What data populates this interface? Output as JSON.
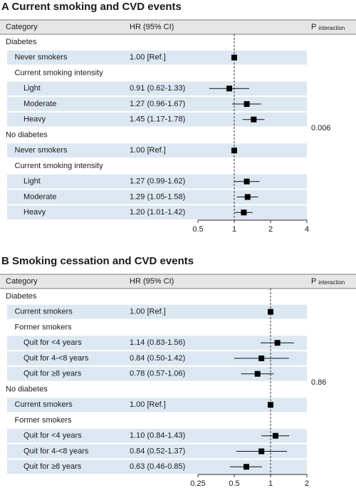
{
  "chart_data": [
    {
      "type": "forest",
      "title": "A Current smoking and CVD events",
      "columns": [
        "Category",
        "HR (95% CI)"
      ],
      "p_header": {
        "symbol": "P",
        "subscript": "interaction"
      },
      "p_value": 0.006,
      "log_x": true,
      "xlim": [
        0.5,
        4
      ],
      "xticks": [
        0.5,
        1,
        2,
        4
      ],
      "ref_line": 1,
      "groups": [
        {
          "name": "Diabetes",
          "rows": [
            {
              "label": "Never smokers",
              "hr": 1.0,
              "ci_label": "1.00 [Ref.]"
            },
            {
              "label": "Current smoking intensity",
              "rows": [
                {
                  "label": "Light",
                  "hr": 0.91,
                  "lo": 0.62,
                  "hi": 1.33,
                  "ci_label": "0.91 (0.62-1.33)"
                },
                {
                  "label": "Moderate",
                  "hr": 1.27,
                  "lo": 0.96,
                  "hi": 1.67,
                  "ci_label": "1.27 (0.96-1.67)"
                },
                {
                  "label": "Heavy",
                  "hr": 1.45,
                  "lo": 1.17,
                  "hi": 1.78,
                  "ci_label": "1.45 (1.17-1.78)"
                }
              ]
            }
          ]
        },
        {
          "name": "No diabetes",
          "rows": [
            {
              "label": "Never smokers",
              "hr": 1.0,
              "ci_label": "1.00 [Ref.]"
            },
            {
              "label": "Current smoking intensity",
              "rows": [
                {
                  "label": "Light",
                  "hr": 1.27,
                  "lo": 0.99,
                  "hi": 1.62,
                  "ci_label": "1.27 (0.99-1.62)"
                },
                {
                  "label": "Moderate",
                  "hr": 1.29,
                  "lo": 1.05,
                  "hi": 1.58,
                  "ci_label": "1.29 (1.05-1.58)"
                },
                {
                  "label": "Heavy",
                  "hr": 1.2,
                  "lo": 1.01,
                  "hi": 1.42,
                  "ci_label": "1.20 (1.01-1.42)"
                }
              ]
            }
          ]
        }
      ]
    },
    {
      "type": "forest",
      "title": "B Smoking cessation and CVD events",
      "columns": [
        "Category",
        "HR (95% CI)"
      ],
      "p_header": {
        "symbol": "P",
        "subscript": "interaction"
      },
      "p_value": 0.86,
      "log_x": true,
      "xlim": [
        0.25,
        2
      ],
      "xticks": [
        0.25,
        0.5,
        1,
        2
      ],
      "ref_line": 1,
      "groups": [
        {
          "name": "Diabetes",
          "rows": [
            {
              "label": "Current smokers",
              "hr": 1.0,
              "ci_label": "1.00 [Ref.]"
            },
            {
              "label": "Former smokers",
              "rows": [
                {
                  "label": "Quit for <4 years",
                  "hr": 1.14,
                  "lo": 0.83,
                  "hi": 1.56,
                  "ci_label": "1.14 (0.83-1.56)"
                },
                {
                  "label": "Quit for 4-<8 years",
                  "hr": 0.84,
                  "lo": 0.5,
                  "hi": 1.42,
                  "ci_label": "0.84 (0.50-1.42)"
                },
                {
                  "label": "Quit for ≥8 years",
                  "hr": 0.78,
                  "lo": 0.57,
                  "hi": 1.06,
                  "ci_label": "0.78 (0.57-1.06)"
                }
              ]
            }
          ]
        },
        {
          "name": "No diabetes",
          "rows": [
            {
              "label": "Current smokers",
              "hr": 1.0,
              "ci_label": "1.00 [Ref.]"
            },
            {
              "label": "Former smokers",
              "rows": [
                {
                  "label": "Quit for <4 years",
                  "hr": 1.1,
                  "lo": 0.84,
                  "hi": 1.43,
                  "ci_label": "1.10 (0.84-1.43)"
                },
                {
                  "label": "Quit for 4-<8 years",
                  "hr": 0.84,
                  "lo": 0.52,
                  "hi": 1.37,
                  "ci_label": "0.84 (0.52-1.37)"
                },
                {
                  "label": "Quit for  ≥8 years",
                  "hr": 0.63,
                  "lo": 0.46,
                  "hi": 0.85,
                  "ci_label": "0.63 (0.46-0.85)"
                }
              ]
            }
          ]
        }
      ]
    }
  ]
}
